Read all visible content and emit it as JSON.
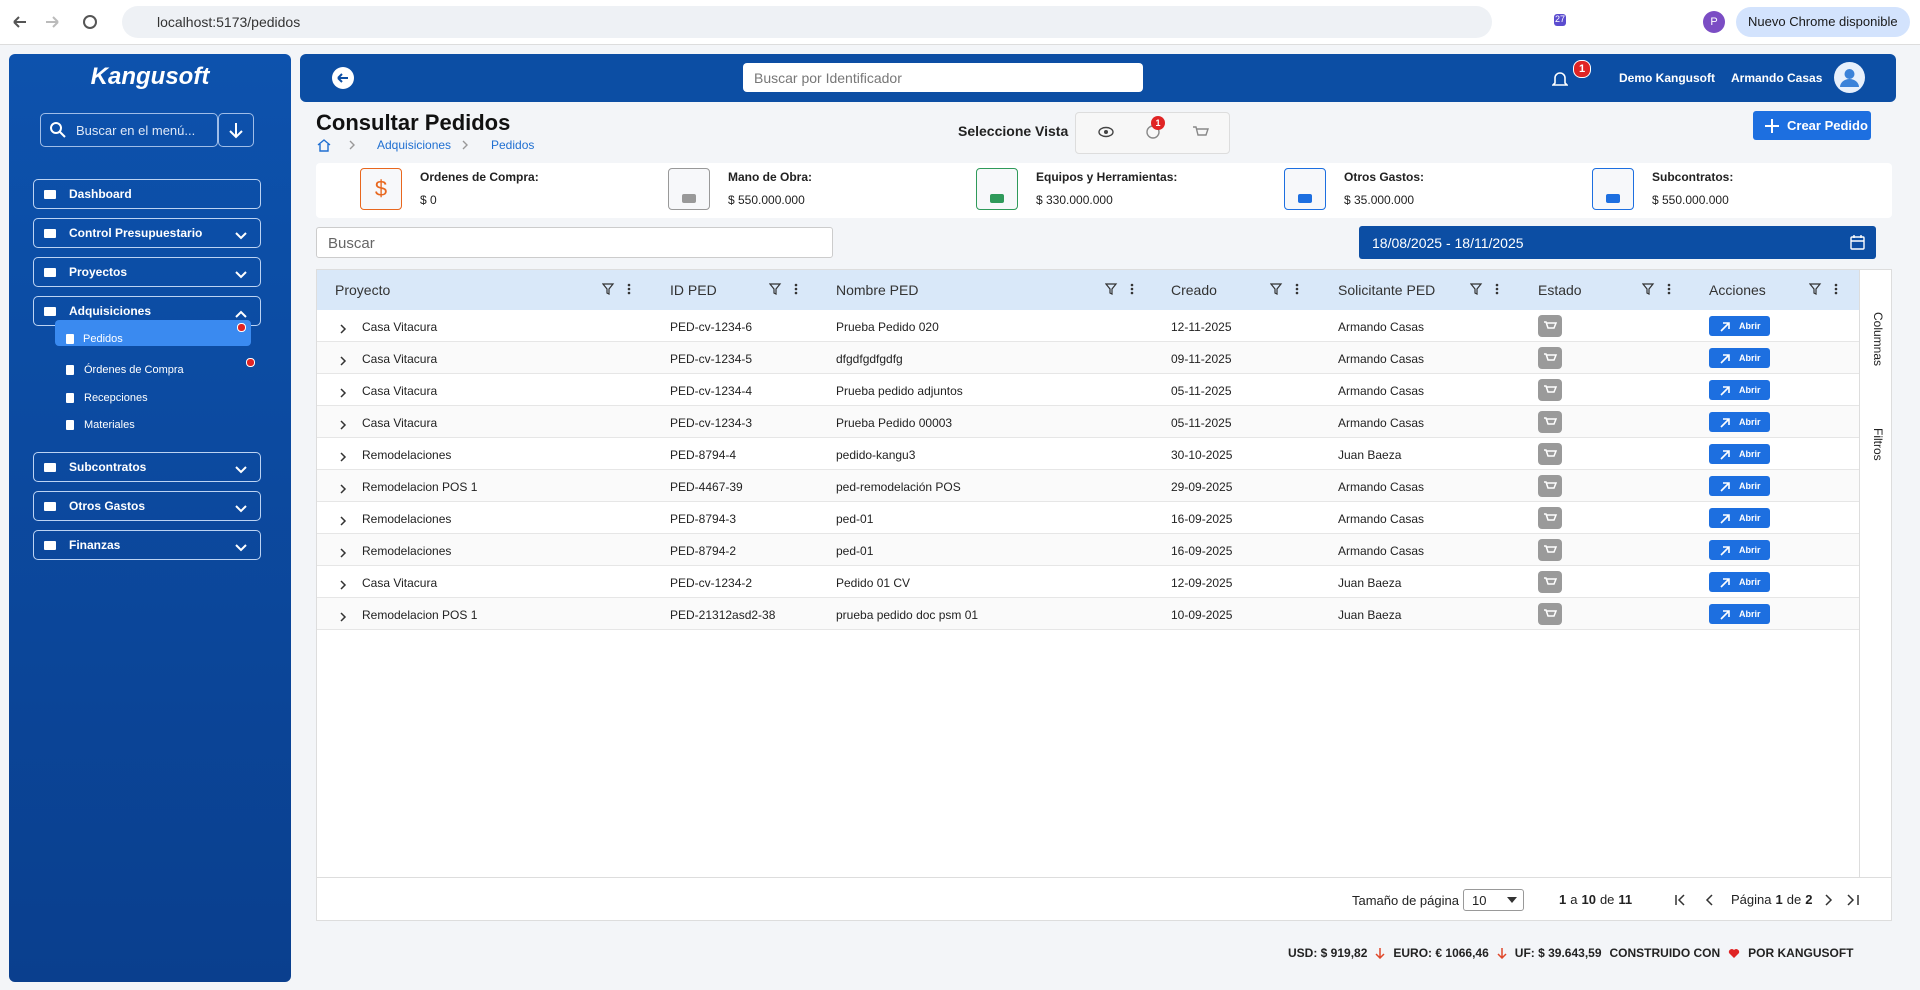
{
  "browser": {
    "url": "localhost:5173/pedidos",
    "extension_badge": "27",
    "profile": "P",
    "update_button": "Nuevo Chrome disponible"
  },
  "sidebar": {
    "logo": "Kangusoft",
    "search_placeholder": "Buscar en el menú...",
    "items": [
      "Dashboard",
      "Control Presupuestario",
      "Proyectos",
      "Adquisiciones",
      "Subcontratos",
      "Otros Gastos",
      "Finanzas"
    ],
    "subitems": [
      "Pedidos",
      "Órdenes de Compra",
      "Recepciones",
      "Materiales"
    ]
  },
  "header": {
    "search_placeholder": "Buscar por Identificador",
    "notifications": "1",
    "company": "Demo Kangusoft",
    "user": "Armando Casas"
  },
  "page": {
    "title": "Consultar Pedidos",
    "breadcrumb": [
      "Adquisiciones",
      "Pedidos"
    ],
    "view_label": "Seleccione Vista",
    "view_badge": "1",
    "create_button": "Crear Pedido"
  },
  "cards": [
    {
      "label": "Ordenes de Compra:",
      "value": "$ 0",
      "icon": "$"
    },
    {
      "label": "Mano de Obra:",
      "value": "$ 550.000.000"
    },
    {
      "label": "Equipos y Herramientas:",
      "value": "$ 330.000.000"
    },
    {
      "label": "Otros Gastos:",
      "value": "$ 35.000.000"
    },
    {
      "label": "Subcontratos:",
      "value": "$ 550.000.000"
    }
  ],
  "search_placeholder": "Buscar",
  "date_range": "18/08/2025 - 18/11/2025",
  "table": {
    "columns": [
      "Proyecto",
      "ID PED",
      "Nombre PED",
      "Creado",
      "Solicitante PED",
      "Estado",
      "Acciones"
    ],
    "action_label": "Abrir",
    "rows": [
      [
        "Casa Vitacura",
        "PED-cv-1234-6",
        "Prueba Pedido 020",
        "12-11-2025",
        "Armando Casas"
      ],
      [
        "Casa Vitacura",
        "PED-cv-1234-5",
        "dfgdfgdfgdfg",
        "09-11-2025",
        "Armando Casas"
      ],
      [
        "Casa Vitacura",
        "PED-cv-1234-4",
        "Prueba pedido adjuntos",
        "05-11-2025",
        "Armando Casas"
      ],
      [
        "Casa Vitacura",
        "PED-cv-1234-3",
        "Prueba Pedido 00003",
        "05-11-2025",
        "Armando Casas"
      ],
      [
        "Remodelaciones",
        "PED-8794-4",
        "pedido-kangu3",
        "30-10-2025",
        "Juan Baeza"
      ],
      [
        "Remodelacion POS 1",
        "PED-4467-39",
        "ped-remodelación POS",
        "29-09-2025",
        "Armando Casas"
      ],
      [
        "Remodelaciones",
        "PED-8794-3",
        "ped-01",
        "16-09-2025",
        "Armando Casas"
      ],
      [
        "Remodelaciones",
        "PED-8794-2",
        "ped-01",
        "16-09-2025",
        "Armando Casas"
      ],
      [
        "Casa Vitacura",
        "PED-cv-1234-2",
        "Pedido 01 CV",
        "12-09-2025",
        "Juan Baeza"
      ],
      [
        "Remodelacion POS 1",
        "PED-21312asd2-38",
        "prueba pedido doc psm 01",
        "10-09-2025",
        "Juan Baeza"
      ]
    ],
    "side_tabs": [
      "Columnas",
      "Filtros"
    ]
  },
  "pagination": {
    "page_size_label": "Tamaño de página",
    "page_size": "10",
    "range_from": "1",
    "range_word": "a",
    "range_to": "10",
    "of_word": "de",
    "range_total": "11",
    "page_word": "Página",
    "page_current": "1",
    "page_of": "de",
    "page_total": "2"
  },
  "footer": {
    "usd": "USD: $ 919,82",
    "euro": "EURO: € 1066,46",
    "uf": "UF: $ 39.643,59",
    "built_with": "CONSTRUIDO CON",
    "built_by": "POR KANGUSOFT"
  }
}
